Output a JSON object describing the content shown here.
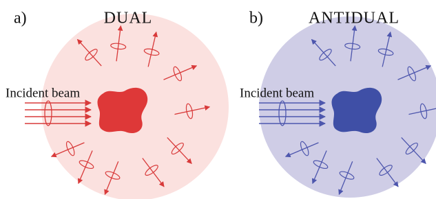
{
  "panels": [
    {
      "letter": "a)",
      "title": "DUAL",
      "beam_label": "Incident beam"
    },
    {
      "letter": "b)",
      "title": "ANTIDUAL",
      "beam_label": "Incident beam"
    }
  ]
}
